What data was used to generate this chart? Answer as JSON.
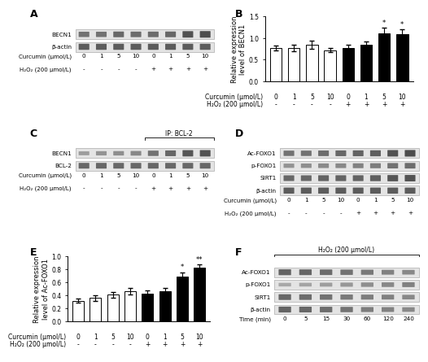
{
  "panel_B": {
    "categories": [
      "0",
      "1",
      "5",
      "10",
      "0",
      "1",
      "5",
      "10"
    ],
    "values": [
      0.77,
      0.77,
      0.85,
      0.72,
      0.77,
      0.85,
      1.12,
      1.1
    ],
    "errors": [
      0.06,
      0.07,
      0.09,
      0.05,
      0.07,
      0.07,
      0.12,
      0.1
    ],
    "colors": [
      "white",
      "white",
      "white",
      "white",
      "black",
      "black",
      "black",
      "black"
    ],
    "ylabel": "Relative expression\nlevel of BECN1",
    "ylim": [
      0.0,
      1.5
    ],
    "yticks": [
      0.0,
      0.5,
      1.0,
      1.5
    ],
    "sig_bars": [
      6,
      7
    ],
    "sig_labels": [
      "*",
      "*"
    ],
    "curcumin_labels": [
      "0",
      "1",
      "5",
      "10",
      "0",
      "1",
      "5",
      "10"
    ],
    "h2o2_labels": [
      "-",
      "-",
      "-",
      "-",
      "+",
      "+",
      "+",
      "+"
    ]
  },
  "panel_E": {
    "categories": [
      "0",
      "1",
      "5",
      "10",
      "0",
      "1",
      "5",
      "10"
    ],
    "values": [
      0.32,
      0.36,
      0.41,
      0.46,
      0.43,
      0.46,
      0.69,
      0.83
    ],
    "errors": [
      0.03,
      0.04,
      0.04,
      0.05,
      0.05,
      0.05,
      0.07,
      0.05
    ],
    "colors": [
      "white",
      "white",
      "white",
      "white",
      "black",
      "black",
      "black",
      "black"
    ],
    "ylabel": "Relative expression\nlevel of Ac-FOXO1",
    "ylim": [
      0.0,
      1.0
    ],
    "yticks": [
      0.0,
      0.2,
      0.4,
      0.6,
      0.8,
      1.0
    ],
    "sig_bars": [
      6,
      7
    ],
    "sig_labels": [
      "*",
      "**"
    ],
    "curcumin_labels": [
      "0",
      "1",
      "5",
      "10",
      "0",
      "1",
      "5",
      "10"
    ],
    "h2o2_labels": [
      "-",
      "-",
      "-",
      "-",
      "+",
      "+",
      "+",
      "+"
    ]
  },
  "panel_label_fontsize": 9,
  "bar_edgecolor": "black",
  "bar_linewidth": 0.7,
  "errorbar_capsize": 2,
  "errorbar_linewidth": 0.8,
  "curcumin_row_label": "Curcumin (μmol/L)",
  "h2o2_row_label": "H₂O₂ (200 μmol/L)",
  "curcumin_concs": [
    "0",
    "1",
    "5",
    "10",
    "0",
    "1",
    "5",
    "10"
  ],
  "h2o2_signs": [
    "-",
    "-",
    "-",
    "-",
    "+",
    "+",
    "+",
    "+"
  ],
  "panel_A_proteins": [
    "BECN1",
    "β-actin"
  ],
  "panel_C_proteins": [
    "BECN1",
    "BCL-2"
  ],
  "panel_D_proteins": [
    "Ac-FOXO1",
    "p-FOXO1",
    "SIRT1",
    "β-actin"
  ],
  "panel_F_proteins": [
    "Ac-FOXO1",
    "p-FOXO1",
    "SIRT1",
    "β-actin"
  ],
  "panel_F_times": [
    "0",
    "5",
    "15",
    "30",
    "60",
    "120",
    "240"
  ],
  "panel_F_time_label": "Time (min)",
  "panel_F_header": "H₂O₂ (200 μmol/L)",
  "ip_label": "IP: BCL-2"
}
